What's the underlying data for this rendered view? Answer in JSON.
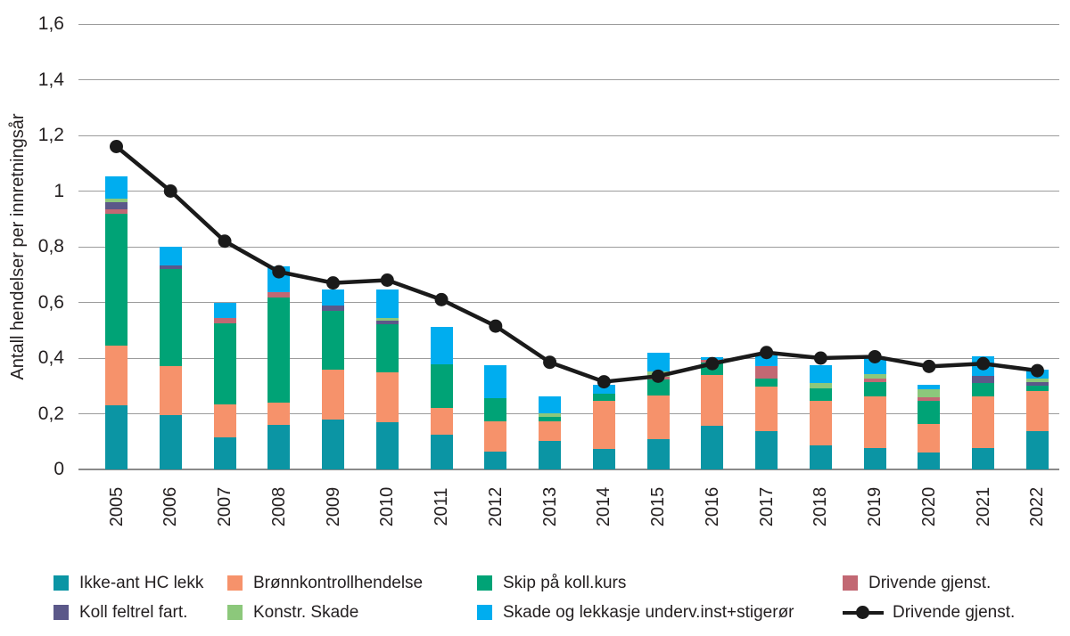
{
  "chart_data": {
    "type": "stacked-bar-with-line",
    "ylabel": "Antall hendelser per innretningsår",
    "ylim": [
      0,
      1.6
    ],
    "grid": true,
    "legend_position": "bottom",
    "yticks": [
      {
        "value": 0,
        "label": "0"
      },
      {
        "value": 0.2,
        "label": "0,2"
      },
      {
        "value": 0.4,
        "label": "0,4"
      },
      {
        "value": 0.6,
        "label": "0,6"
      },
      {
        "value": 0.8,
        "label": "0,8"
      },
      {
        "value": 1.0,
        "label": "1"
      },
      {
        "value": 1.2,
        "label": "1,2"
      },
      {
        "value": 1.4,
        "label": "1,4"
      },
      {
        "value": 1.6,
        "label": "1,6"
      }
    ],
    "categories": [
      "2005",
      "2006",
      "2007",
      "2008",
      "2009",
      "2010",
      "2011",
      "2012",
      "2013",
      "2014",
      "2015",
      "2016",
      "2017",
      "2018",
      "2019",
      "2020",
      "2021",
      "2022"
    ],
    "series": [
      {
        "name": "Ikke-ant HC lekk",
        "color": "#0b95a4",
        "values": [
          0.23,
          0.195,
          0.115,
          0.16,
          0.18,
          0.17,
          0.125,
          0.065,
          0.103,
          0.075,
          0.11,
          0.158,
          0.137,
          0.085,
          0.076,
          0.06,
          0.076,
          0.137
        ]
      },
      {
        "name": "Brønnkontrollhendelse",
        "color": "#f6926b",
        "values": [
          0.216,
          0.175,
          0.12,
          0.08,
          0.18,
          0.18,
          0.097,
          0.109,
          0.069,
          0.173,
          0.155,
          0.182,
          0.161,
          0.16,
          0.187,
          0.103,
          0.187,
          0.146
        ]
      },
      {
        "name": "Skip på koll.kurs",
        "color": "#00a376",
        "values": [
          0.471,
          0.349,
          0.29,
          0.377,
          0.21,
          0.172,
          0.155,
          0.083,
          0.017,
          0.023,
          0.057,
          0.043,
          0.03,
          0.045,
          0.051,
          0.083,
          0.047,
          0.017
        ]
      },
      {
        "name": "Drivende gjenst.",
        "color": "#c26873",
        "values": [
          0.016,
          0,
          0.02,
          0.021,
          0,
          0,
          0,
          0,
          0,
          0,
          0.01,
          0.011,
          0.042,
          0,
          0.013,
          0.013,
          0,
          0
        ]
      },
      {
        "name": "Koll feltrel fart.",
        "color": "#5b5889",
        "values": [
          0.028,
          0.013,
          0,
          0,
          0.019,
          0.011,
          0,
          0,
          0,
          0,
          0,
          0,
          0,
          0,
          0,
          0,
          0.027,
          0.015
        ]
      },
      {
        "name": "Konstr. Skade",
        "color": "#8cc87b",
        "values": [
          0.013,
          0,
          0,
          0,
          0,
          0.01,
          0,
          0,
          0.013,
          0,
          0.019,
          0,
          0,
          0.02,
          0.014,
          0.029,
          0,
          0.013
        ]
      },
      {
        "name": "Skade og lekkasje underv.inst+stigerør",
        "color": "#00adef",
        "values": [
          0.079,
          0.068,
          0.055,
          0.092,
          0.059,
          0.102,
          0.134,
          0.116,
          0.059,
          0.034,
          0.067,
          0.008,
          0.04,
          0.063,
          0.062,
          0.016,
          0.068,
          0.031
        ]
      }
    ],
    "line_series": {
      "name": "Drivende gjenst.",
      "color": "#1a1a1a",
      "values": [
        1.16,
        1.0,
        0.82,
        0.71,
        0.67,
        0.68,
        0.61,
        0.515,
        0.385,
        0.315,
        0.335,
        0.38,
        0.42,
        0.4,
        0.405,
        0.37,
        0.38,
        0.355
      ]
    },
    "legend": {
      "rows": [
        [
          {
            "label": "Ikke-ant HC lekk",
            "swatch": "#0b95a4",
            "marker": "square"
          },
          {
            "label": "Brønnkontrollhendelse",
            "swatch": "#f6926b",
            "marker": "square"
          },
          {
            "label": "Skip på koll.kurs",
            "swatch": "#00a376",
            "marker": "square"
          },
          {
            "label": "Drivende gjenst.",
            "swatch": "#c26873",
            "marker": "square"
          }
        ],
        [
          {
            "label": "Koll feltrel fart.",
            "swatch": "#5b5889",
            "marker": "square"
          },
          {
            "label": "Konstr. Skade",
            "swatch": "#8cc87b",
            "marker": "square"
          },
          {
            "label": "Skade og lekkasje underv.inst+stigerør",
            "swatch": "#00adef",
            "marker": "square"
          },
          {
            "label": "Drivende gjenst.",
            "swatch": "#1a1a1a",
            "marker": "line"
          }
        ]
      ]
    }
  }
}
